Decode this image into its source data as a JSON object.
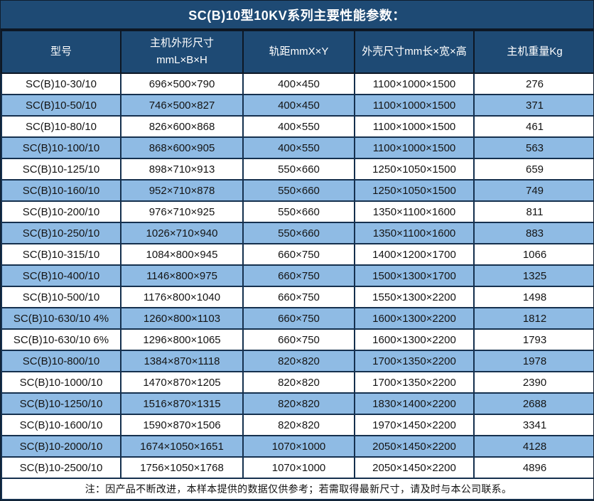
{
  "title": "SC(B)10型10KV系列主要性能参数：",
  "note": "注：因产品不断改进，本样本提供的数据仅供参考；若需取得最新尺寸，请及时与本公司联系。",
  "colors": {
    "header_bg": "#1E4A74",
    "row_bg": "#FFFFFF",
    "row_alt_bg": "#8FBBE4",
    "grid_border": "#15304E",
    "header_text": "#FFFFFF",
    "body_text": "#141414"
  },
  "chart_data": {
    "type": "table",
    "title": "SC(B)10型10KV系列主要性能参数：",
    "columns": [
      "型号",
      "主机外形尺寸 mmL×B×H",
      "轨距mmX×Y",
      "外壳尺寸mm长×宽×高",
      "主机重量Kg"
    ],
    "header_lines": [
      [
        "型号"
      ],
      [
        "主机外形尺寸",
        "mmL×B×H"
      ],
      [
        "轨距mmX×Y"
      ],
      [
        "外壳尺寸mm长×宽×高"
      ],
      [
        "主机重量Kg"
      ]
    ],
    "rows": [
      [
        "SC(B)10-30/10",
        "696×500×790",
        "400×450",
        "1100×1000×1500",
        "276"
      ],
      [
        "SC(B)10-50/10",
        "746×500×827",
        "400×450",
        "1100×1000×1500",
        "371"
      ],
      [
        "SC(B)10-80/10",
        "826×600×868",
        "400×550",
        "1100×1000×1500",
        "461"
      ],
      [
        "SC(B)10-100/10",
        "868×600×905",
        "400×550",
        "1100×1000×1500",
        "563"
      ],
      [
        "SC(B)10-125/10",
        "898×710×913",
        "550×660",
        "1250×1050×1500",
        "659"
      ],
      [
        "SC(B)10-160/10",
        "952×710×878",
        "550×660",
        "1250×1050×1500",
        "749"
      ],
      [
        "SC(B)10-200/10",
        "976×710×925",
        "550×660",
        "1350×1100×1600",
        "811"
      ],
      [
        "SC(B)10-250/10",
        "1026×710×940",
        "550×660",
        "1350×1100×1600",
        "883"
      ],
      [
        "SC(B)10-315/10",
        "1084×800×945",
        "660×750",
        "1400×1200×1700",
        "1066"
      ],
      [
        "SC(B)10-400/10",
        "1146×800×975",
        "660×750",
        "1500×1300×1700",
        "1325"
      ],
      [
        "SC(B)10-500/10",
        "1176×800×1040",
        "660×750",
        "1550×1300×2200",
        "1498"
      ],
      [
        "SC(B)10-630/10 4%",
        "1260×800×1103",
        "660×750",
        "1600×1300×2200",
        "1812"
      ],
      [
        "SC(B)10-630/10 6%",
        "1296×800×1065",
        "660×750",
        "1600×1300×2200",
        "1793"
      ],
      [
        "SC(B)10-800/10",
        "1384×870×1118",
        "820×820",
        "1700×1350×2200",
        "1978"
      ],
      [
        "SC(B)10-1000/10",
        "1470×870×1205",
        "820×820",
        "1700×1350×2200",
        "2390"
      ],
      [
        "SC(B)10-1250/10",
        "1516×870×1315",
        "820×820",
        "1830×1400×2200",
        "2688"
      ],
      [
        "SC(B)10-1600/10",
        "1590×870×1506",
        "820×820",
        "1970×1450×2200",
        "3341"
      ],
      [
        "SC(B)10-2000/10",
        "1674×1050×1651",
        "1070×1000",
        "2050×1450×2200",
        "4128"
      ],
      [
        "SC(B)10-2500/10",
        "1756×1050×1768",
        "1070×1000",
        "2050×1450×2200",
        "4896"
      ]
    ],
    "layout_hints": {
      "striping": "odd rows white, even rows light blue",
      "alignment": "all cells centered",
      "header_rows": 1
    }
  }
}
